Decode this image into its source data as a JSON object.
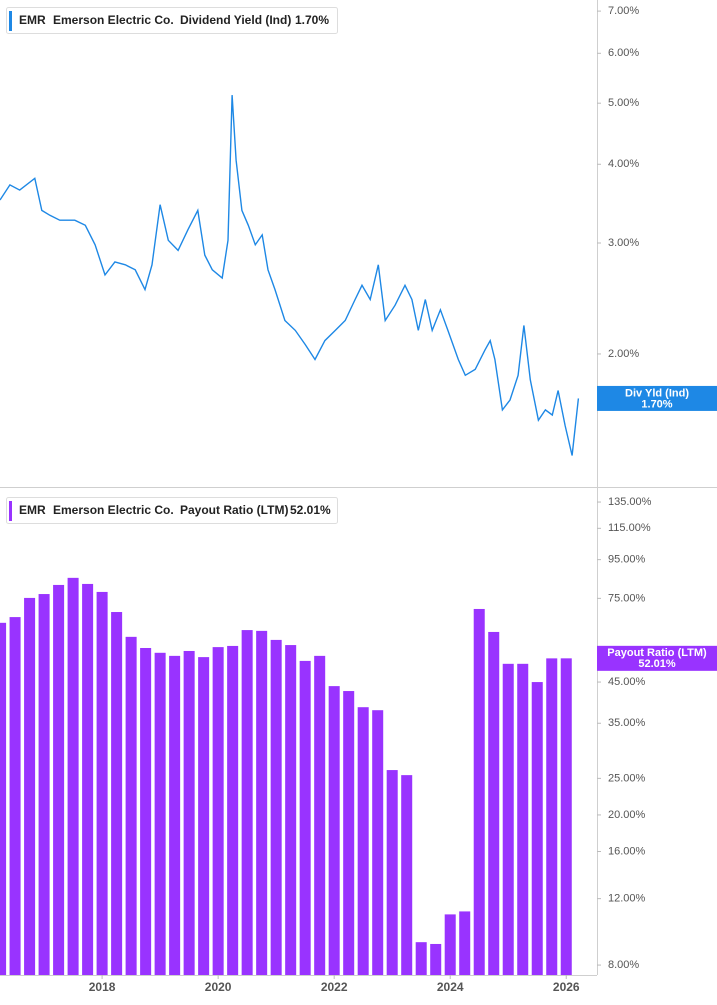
{
  "chart_data": [
    {
      "type": "line",
      "ticker": "EMR",
      "company": "Emerson Electric Co.",
      "badge_label": "Div Yld (Ind)",
      "last_label": "1.70%",
      "log_scale": true,
      "x": [
        2016.24,
        2016.41,
        2016.58,
        2016.84,
        2016.96,
        2017.1,
        2017.27,
        2017.53,
        2017.71,
        2017.88,
        2018.05,
        2018.22,
        2018.4,
        2018.57,
        2018.74,
        2018.86,
        2019.0,
        2019.14,
        2019.31,
        2019.48,
        2019.65,
        2019.77,
        2019.9,
        2020.07,
        2020.17,
        2020.24,
        2020.31,
        2020.41,
        2020.52,
        2020.64,
        2020.76,
        2020.86,
        2020.98,
        2021.15,
        2021.33,
        2021.5,
        2021.67,
        2021.84,
        2022.02,
        2022.19,
        2022.36,
        2022.48,
        2022.62,
        2022.76,
        2022.88,
        2023.05,
        2023.22,
        2023.34,
        2023.45,
        2023.57,
        2023.69,
        2023.83,
        2023.96,
        2024.14,
        2024.26,
        2024.43,
        2024.6,
        2024.69,
        2024.77,
        2024.9,
        2025.03,
        2025.17,
        2025.27,
        2025.38,
        2025.52,
        2025.64,
        2025.76,
        2025.86,
        2025.98,
        2026.1,
        2026.21
      ],
      "series": [
        {
          "name": "Dividend Yield (Ind)",
          "color": "#1e88e5",
          "values": [
            3.51,
            3.71,
            3.64,
            3.8,
            3.38,
            3.32,
            3.26,
            3.26,
            3.2,
            2.98,
            2.67,
            2.8,
            2.77,
            2.72,
            2.53,
            2.77,
            3.45,
            3.03,
            2.92,
            3.15,
            3.38,
            2.87,
            2.72,
            2.64,
            3.03,
            5.15,
            4.06,
            3.38,
            3.2,
            2.98,
            3.09,
            2.72,
            2.53,
            2.26,
            2.18,
            2.07,
            1.96,
            2.1,
            2.18,
            2.26,
            2.44,
            2.57,
            2.44,
            2.77,
            2.26,
            2.39,
            2.57,
            2.44,
            2.18,
            2.44,
            2.18,
            2.35,
            2.18,
            1.96,
            1.85,
            1.89,
            2.03,
            2.1,
            1.96,
            1.63,
            1.69,
            1.85,
            2.22,
            1.82,
            1.57,
            1.63,
            1.6,
            1.75,
            1.54,
            1.38,
            1.7
          ]
        }
      ],
      "xlim": [
        2016.24,
        2026.53
      ],
      "ylim": [
        1.23,
        7.29
      ],
      "yticks": [
        {
          "value": 7,
          "label": "7.00%"
        },
        {
          "value": 6,
          "label": "6.00%"
        },
        {
          "value": 5,
          "label": "5.00%"
        },
        {
          "value": 4,
          "label": "4.00%"
        },
        {
          "value": 3,
          "label": "3.00%"
        },
        {
          "value": 2,
          "label": "2.00%"
        }
      ]
    },
    {
      "type": "bar",
      "ticker": "EMR",
      "company": "Emerson Electric Co.",
      "badge_label": "Payout Ratio (LTM)",
      "last_label": "52.01%",
      "log_scale": true,
      "x": [
        2016.25,
        2016.5,
        2016.75,
        2017,
        2017.25,
        2017.5,
        2017.75,
        2018,
        2018.25,
        2018.5,
        2018.75,
        2019,
        2019.25,
        2019.5,
        2019.75,
        2020,
        2020.25,
        2020.5,
        2020.75,
        2021,
        2021.25,
        2021.5,
        2021.75,
        2022,
        2022.25,
        2022.5,
        2022.75,
        2023,
        2023.25,
        2023.5,
        2023.75,
        2024,
        2024.25,
        2024.5,
        2024.75,
        2025,
        2025.25,
        2025.5,
        2025.75,
        2026
      ],
      "series": [
        {
          "name": "Payout Ratio (LTM)",
          "color": "#9933ff",
          "values": [
            64.6,
            66.9,
            75.2,
            77.0,
            81.4,
            85.0,
            81.9,
            78.0,
            69.0,
            59.3,
            55.4,
            53.8,
            52.8,
            54.4,
            52.4,
            55.7,
            56.1,
            61.8,
            61.5,
            58.2,
            56.4,
            51.2,
            52.8,
            43.9,
            42.6,
            38.6,
            37.9,
            26.3,
            25.5,
            9.2,
            9.1,
            10.9,
            11.1,
            70.3,
            61.1,
            50.3,
            50.3,
            45.0,
            52.0,
            52.01
          ]
        }
      ],
      "xlim": [
        2016.24,
        2026.53
      ],
      "xticks": [
        2018,
        2020,
        2022,
        2024,
        2026
      ],
      "ylim": [
        7.53,
        145.3
      ],
      "yticks": [
        {
          "value": 135,
          "label": "135.00%"
        },
        {
          "value": 115,
          "label": "115.00%"
        },
        {
          "value": 95,
          "label": "95.00%"
        },
        {
          "value": 75,
          "label": "75.00%"
        },
        {
          "value": 45,
          "label": "45.00%"
        },
        {
          "value": 35,
          "label": "35.00%"
        },
        {
          "value": 25,
          "label": "25.00%"
        },
        {
          "value": 20,
          "label": "20.00%"
        },
        {
          "value": 16,
          "label": "16.00%"
        },
        {
          "value": 12,
          "label": "12.00%"
        },
        {
          "value": 8,
          "label": "8.00%"
        }
      ]
    }
  ]
}
